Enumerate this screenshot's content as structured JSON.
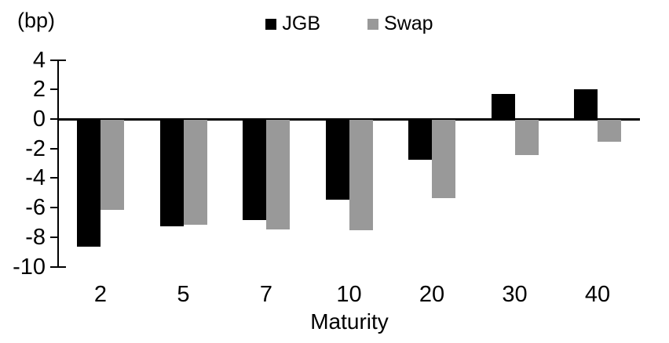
{
  "chart_data": {
    "type": "bar",
    "title": "",
    "unit_label": "(bp)",
    "xlabel": "Maturity",
    "categories": [
      "2",
      "5",
      "7",
      "10",
      "20",
      "30",
      "40"
    ],
    "series": [
      {
        "name": "JGB",
        "color": "#000000",
        "values": [
          -8.6,
          -7.2,
          -6.8,
          -5.4,
          -2.7,
          1.7,
          2.0
        ]
      },
      {
        "name": "Swap",
        "color": "#999999",
        "values": [
          -6.1,
          -7.1,
          -7.4,
          -7.5,
          -5.3,
          -2.4,
          -1.5
        ]
      }
    ],
    "y_ticks": [
      4,
      2,
      0,
      -2,
      -4,
      -6,
      -8,
      -10
    ],
    "ylim": [
      -10,
      4
    ],
    "grid": false,
    "legend_position": "top-center",
    "background_color": "#ffffff",
    "axis_color": "#000000"
  }
}
